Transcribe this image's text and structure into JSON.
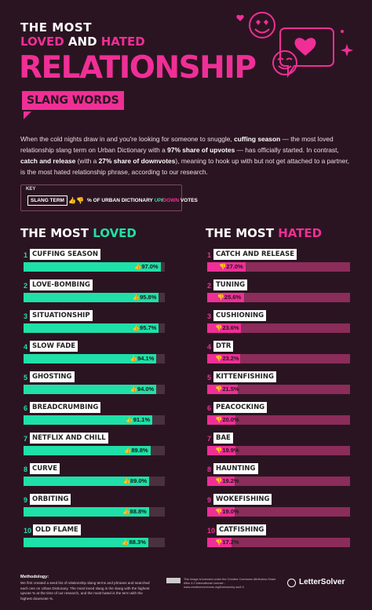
{
  "header": {
    "line1": "THE MOST",
    "line2_loved": "LOVED",
    "line2_and": " AND ",
    "line2_hated": "HATED",
    "big": "RELATIONSHIP",
    "badge": "SLANG WORDS"
  },
  "intro": {
    "p1": "When the cold nights draw in and you're looking for someone to snuggle, ",
    "b1": "cuffing season",
    "p2": " — the most loved relationship slang term on Urban Dictionary with a ",
    "b2": "97% share of upvotes",
    "p3": " — has officially started. In contrast, ",
    "b3": "catch and release",
    "p4": " (with a ",
    "b4": "27% share of downvotes",
    "p5": "), meaning to hook up with but not get attached to a partner, is the most hated relationship phrase, according to our research."
  },
  "key": {
    "title": "KEY",
    "tag": "SLANG TERM",
    "text_pre": "% OF URBAN DICTIONARY ",
    "up": "UP",
    "slash": "/",
    "down": "DOWN",
    "text_post": " VOTES"
  },
  "colors": {
    "loved": "#1fe0a8",
    "hated": "#ef2f96",
    "background": "#2b1421"
  },
  "sections": {
    "loved_pre": "THE MOST ",
    "loved": "LOVED",
    "hated_pre": "THE MOST ",
    "hated": "HATED"
  },
  "chart_data": [
    {
      "type": "bar",
      "title": "THE MOST LOVED",
      "ylim": [
        0,
        100
      ],
      "icon": "thumbs-up-icon",
      "categories": [
        "CUFFING SEASON",
        "LOVE-BOMBING",
        "SITUATIONSHIP",
        "SLOW FADE",
        "GHOSTING",
        "BREADCRUMBING",
        "NETFLIX AND CHILL",
        "CURVE",
        "ORBITING",
        "OLD FLAME"
      ],
      "ranks": [
        "1",
        "2",
        "3",
        "4",
        "5",
        "6",
        "7",
        "8",
        "9",
        "10"
      ],
      "values": [
        97.0,
        95.8,
        95.7,
        94.1,
        94.0,
        91.1,
        89.8,
        89.0,
        88.8,
        88.3
      ],
      "labels": [
        "97.0%",
        "95.8%",
        "95.7%",
        "94.1%",
        "94.0%",
        "91.1%",
        "89.8%",
        "89.0%",
        "88.8%",
        "88.3%"
      ]
    },
    {
      "type": "bar",
      "title": "THE MOST HATED",
      "ylim": [
        0,
        100
      ],
      "icon": "thumbs-down-icon",
      "categories": [
        "CATCH AND RELEASE",
        "TUNING",
        "CUSHIONING",
        "DTR",
        "KITTENFISHING",
        "PEACOCKING",
        "BAE",
        "HAUNTING",
        "WOKEFISHING",
        "CATFISHING"
      ],
      "ranks": [
        "1",
        "2",
        "3",
        "4",
        "5",
        "6",
        "7",
        "8",
        "9",
        "10"
      ],
      "values": [
        27.0,
        25.6,
        23.6,
        23.2,
        21.5,
        20.0,
        19.9,
        19.2,
        19.0,
        17.2
      ],
      "labels": [
        "27.0%",
        "25.6%",
        "23.6%",
        "23.2%",
        "21.5%",
        "20.0%",
        "19.9%",
        "19.2%",
        "19.0%",
        "17.2%"
      ]
    }
  ],
  "footer": {
    "method_title": "Methodology:",
    "method": "We first created a seed list of relationship slang terms and phrases and searched each one on Urban Dictionary. The most loved slang is the slang with the highest upvote % at the time of our research, and the most hated is the term with the highest downvote %.",
    "license": "This image is licensed under the Creative Commons Attribution-Share Alike 4.0 International License - www.creativecommons.org/licenses/by-sa/4.0",
    "brand": "LetterSolver"
  }
}
